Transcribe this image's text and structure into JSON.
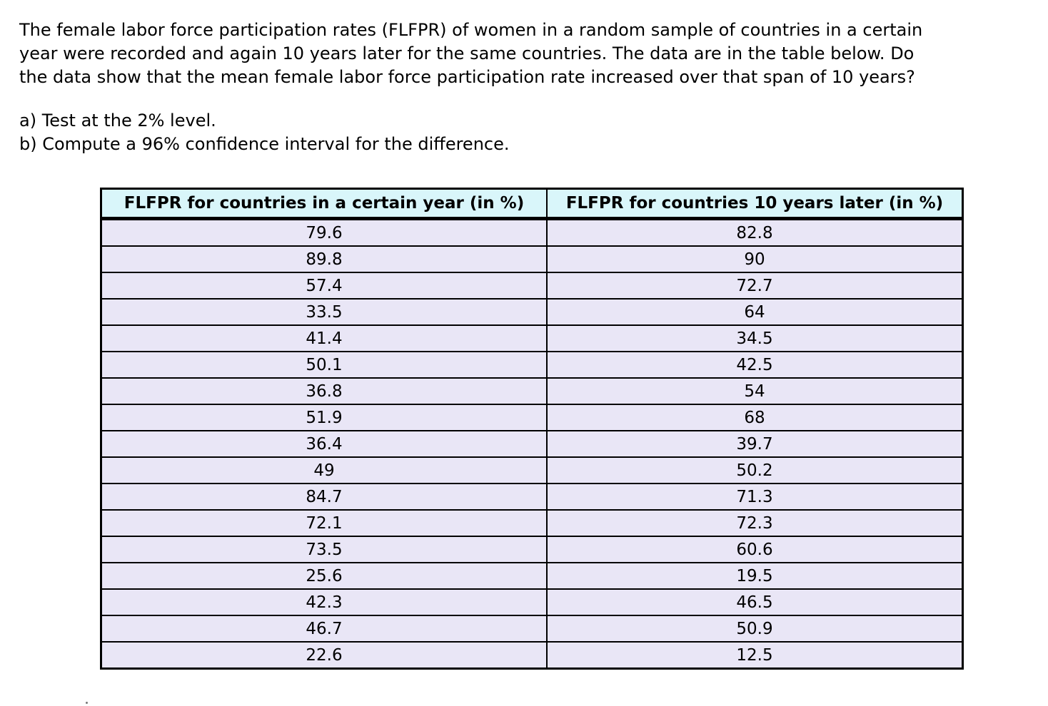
{
  "problem": {
    "lines": [
      "The female labor force participation rates (FLFPR) of women in a random sample of countries in a certain",
      "year were recorded and again 10 years later for the same countries. The data are in the table below. Do",
      "the data show that the mean female labor force participation rate increased over that span of 10 years?"
    ],
    "part_a": "a) Test at the 2% level.",
    "part_b": "b) Compute a 96% confidence interval for the difference."
  },
  "table": {
    "headers": [
      "FLFPR for countries in a certain year (in %)",
      "FLFPR for countries 10 years later (in %)"
    ],
    "rows": [
      [
        "79.6",
        "82.8"
      ],
      [
        "89.8",
        "90"
      ],
      [
        "57.4",
        "72.7"
      ],
      [
        "33.5",
        "64"
      ],
      [
        "41.4",
        "34.5"
      ],
      [
        "50.1",
        "42.5"
      ],
      [
        "36.8",
        "54"
      ],
      [
        "51.9",
        "68"
      ],
      [
        "36.4",
        "39.7"
      ],
      [
        "49",
        "50.2"
      ],
      [
        "84.7",
        "71.3"
      ],
      [
        "72.1",
        "72.3"
      ],
      [
        "73.5",
        "60.6"
      ],
      [
        "25.6",
        "19.5"
      ],
      [
        "42.3",
        "46.5"
      ],
      [
        "46.7",
        "50.9"
      ],
      [
        "22.6",
        "12.5"
      ]
    ],
    "colors": {
      "header_bg": "#d9f6fa",
      "row_bg": "#e9e6f6",
      "border": "#000000"
    }
  }
}
